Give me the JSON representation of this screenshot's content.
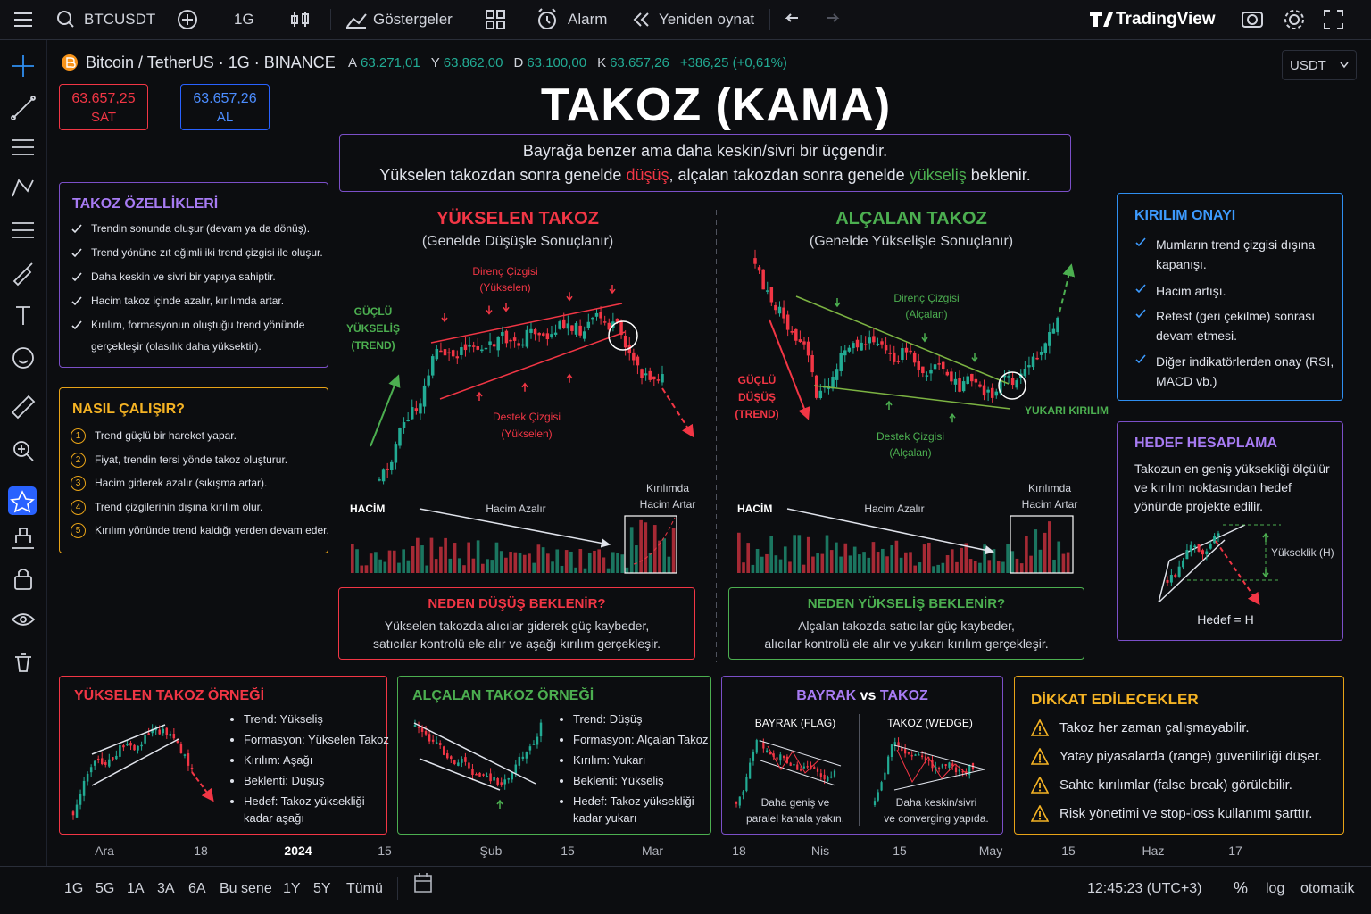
{
  "toolbar": {
    "symbol": "BTCUSDT",
    "interval": "1G",
    "indicators": "Göstergeler",
    "alert": "Alarm",
    "replay": "Yeniden oynat",
    "brand": "TradingView"
  },
  "legend": {
    "title": "Bitcoin / TetherUS · 1G · BINANCE",
    "ohlc": [
      {
        "key": "A",
        "value": "63.271,01"
      },
      {
        "key": "Y",
        "value": "63.862,00"
      },
      {
        "key": "D",
        "value": "63.100,00"
      },
      {
        "key": "K",
        "value": "63.657,26"
      }
    ],
    "change": "+386,25 (+0,61%)",
    "currency": "USDT"
  },
  "sell": {
    "price": "63.657,25",
    "label": "SAT"
  },
  "buy": {
    "price": "63.657,26",
    "label": "AL"
  },
  "title": "TAKOZ (KAMA)",
  "intro": {
    "line1": "Bayrağa benzer ama daha keskin/sivri bir üçgendir.",
    "line2": [
      "Yükselen takozdan sonra genelde ",
      "düşüş",
      ", alçalan takozdan sonra genelde ",
      "yükseliş",
      " beklenir."
    ]
  },
  "features": {
    "title": "TAKOZ ÖZELLİKLERİ",
    "items": [
      "Trendin sonunda oluşur (devam ya da dönüş).",
      "Trend yönüne zıt eğimli iki trend çizgisi ile oluşur.",
      "Daha keskin ve sivri bir yapıya sahiptir.",
      "Hacim takoz içinde azalır, kırılımda artar.",
      "Kırılım, formasyonun oluştuğu trend yönünde gerçekleşir (olasılık daha yüksektir)."
    ]
  },
  "how": {
    "title": "NASIL ÇALIŞIR?",
    "steps": [
      {
        "n": "1",
        "text": "Trend güçlü bir hareket yapar."
      },
      {
        "n": "2",
        "text": "Fiyat, trendin tersi yönde takoz oluşturur."
      },
      {
        "n": "3",
        "text": "Hacim giderek azalır (sıkışma artar)."
      },
      {
        "n": "4",
        "text": "Trend çizgilerinin dışına kırılım olur."
      },
      {
        "n": "5",
        "text": "Kırılım yönünde trend kaldığı yerden devam eder."
      }
    ]
  },
  "rising": {
    "title": "YÜKSELEN TAKOZ",
    "subtitle": "(Genelde Düşüşle Sonuçlanır)",
    "resistance": [
      "Direnç Çizgisi",
      "(Yükselen)"
    ],
    "support": [
      "Destek Çizgisi",
      "(Yükselen)"
    ],
    "trend": [
      "GÜÇLÜ",
      "YÜKSELİŞ",
      "(TREND)"
    ],
    "volume": "HACİM",
    "volume_note": "Hacim Azalır",
    "break_volume": [
      "Kırılımda",
      "Hacim Artar"
    ]
  },
  "falling": {
    "title": "ALÇALAN TAKOZ",
    "subtitle": "(Genelde Yükselişle Sonuçlanır)",
    "resistance": [
      "Direnç Çizgisi",
      "(Alçalan)"
    ],
    "support": [
      "Destek Çizgisi",
      "(Alçalan)"
    ],
    "trend": [
      "GÜÇLÜ",
      "DÜŞÜŞ",
      "(TREND)"
    ],
    "breakout": "YUKARI KIRILIM",
    "volume": "HACİM",
    "volume_note": "Hacim Azalır",
    "break_volume": [
      "Kırılımda",
      "Hacim Artar"
    ]
  },
  "why_down": {
    "title": "NEDEN DÜŞÜŞ BEKLENİR?",
    "lines": [
      "Yükselen takozda alıcılar giderek güç kaybeder,",
      "satıcılar kontrolü ele alır ve aşağı kırılım gerçekleşir."
    ]
  },
  "why_up": {
    "title": "NEDEN YÜKSELİŞ BEKLENİR?",
    "lines": [
      "Alçalan takozda satıcılar güç kaybeder,",
      "alıcılar kontrolü ele alır ve yukarı kırılım gerçekleşir."
    ]
  },
  "confirmation": {
    "title": "KIRILIM ONAYI",
    "items": [
      "Mumların trend çizgisi dışına kapanışı.",
      "Hacim artışı.",
      "Retest (geri çekilme) sonrası devam etmesi.",
      "Diğer indikatörlerden onay (RSI, MACD vb.)"
    ]
  },
  "target": {
    "title": "HEDEF HESAPLAMA",
    "text": "Takozun en geniş yüksekliği ölçülür ve kırılım noktasından hedef yönünde projekte edilir.",
    "height": "Yükseklik (H)",
    "result": "Hedef = H"
  },
  "examples": [
    {
      "title": "YÜKSELEN TAKOZ ÖRNEĞİ",
      "items": [
        "Trend: Yükseliş",
        "Formasyon: Yükselen Takoz",
        "Kırılım: Aşağı",
        "Beklenti: Düşüş",
        "Hedef: Takoz yüksekliği kadar aşağı"
      ]
    },
    {
      "title": "ALÇALAN TAKOZ ÖRNEĞİ",
      "items": [
        "Trend: Düşüş",
        "Formasyon: Alçalan Takoz",
        "Kırılım: Yukarı",
        "Beklenti: Yükseliş",
        "Hedef: Takoz yüksekliği kadar yukarı"
      ]
    }
  ],
  "flag_vs_wedge": {
    "title": [
      "BAYRAK",
      " vs ",
      "TAKOZ"
    ],
    "flag": {
      "title": "BAYRAK (FLAG)",
      "note": [
        "Daha geniş ve",
        "paralel kanala yakın."
      ]
    },
    "wedge": {
      "title": "TAKOZ (WEDGE)",
      "note": [
        "Daha keskin/sivri",
        "ve converging yapıda."
      ]
    }
  },
  "cautions": {
    "title": "DİKKAT EDİLECEKLER",
    "items": [
      "Takoz her zaman çalışmayabilir.",
      "Yatay piyasalarda (range) güvenilirliği düşer.",
      "Sahte kırılımlar (false break) görülebilir.",
      "Risk yönetimi ve stop-loss kullanımı şarttır."
    ]
  },
  "time_axis": [
    "Ara",
    "18",
    "2024",
    "15",
    "Şub",
    "15",
    "Mar",
    "18",
    "Nis",
    "15",
    "May",
    "15",
    "Haz",
    "17"
  ],
  "bottom": {
    "ranges": [
      "1G",
      "5G",
      "1A",
      "3A",
      "6A",
      "Bu sene",
      "1Y",
      "5Y",
      "Tümü"
    ],
    "clock": "12:45:23 (UTC+3)",
    "percent": "%",
    "log": "log",
    "auto": "otomatik"
  }
}
